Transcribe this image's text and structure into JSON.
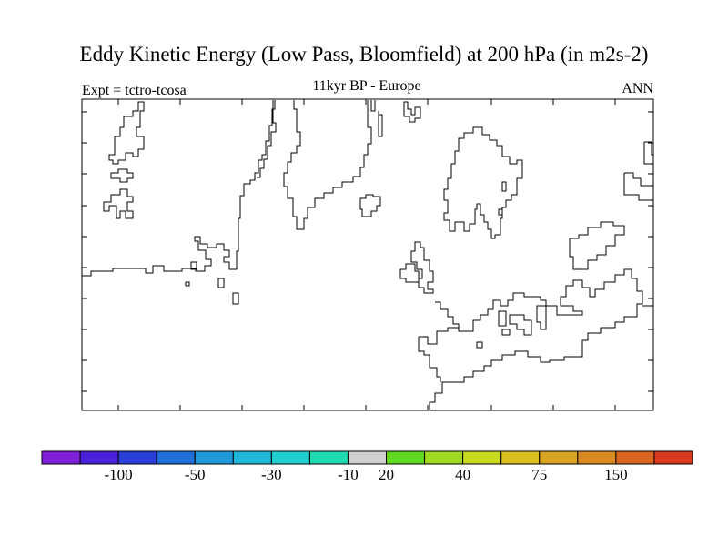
{
  "title": "Eddy Kinetic Energy (Low Pass, Bloomfield) at 200 hPa (in m2s-2)",
  "experiment": "Expt = tctro-tcosa",
  "subtitle": "11kyr BP - Europe",
  "season": "ANN",
  "colorbar": {
    "colors": [
      "#7f1fd9",
      "#4a1fd9",
      "#2a3fd9",
      "#1f6fd9",
      "#1f98d9",
      "#1fb8d9",
      "#1fcfd0",
      "#1fd9b0",
      "#d0d0d0",
      "#5fd91f",
      "#a0d91f",
      "#c9d91f",
      "#d9c01f",
      "#d9a41f",
      "#d98a1f",
      "#d9651f",
      "#d93a1f"
    ],
    "labels": [
      "-100",
      "-50",
      "-30",
      "-10",
      "20",
      "40",
      "75",
      "150"
    ]
  }
}
